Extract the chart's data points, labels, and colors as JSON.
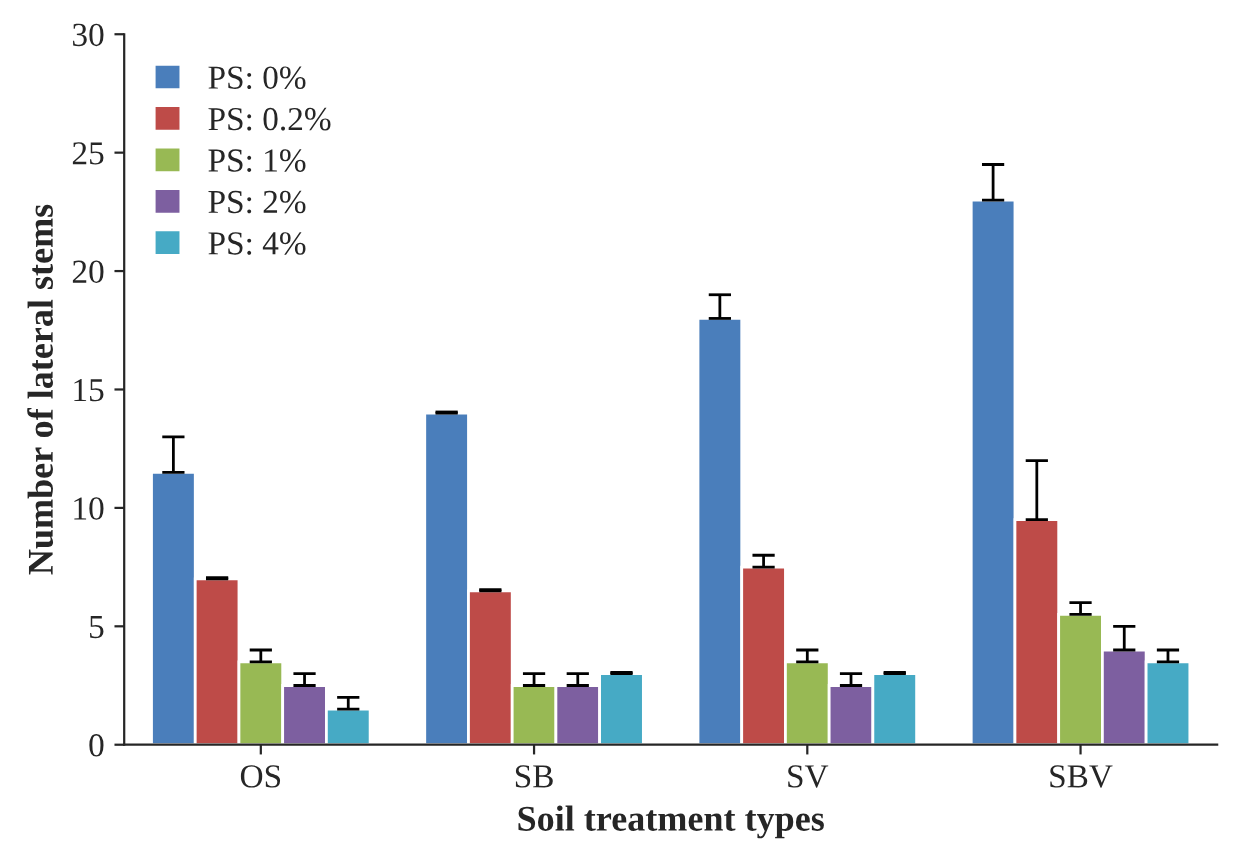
{
  "chart_data": {
    "type": "bar",
    "xlabel": "Soil treatment types",
    "ylabel": "Number of lateral stems",
    "categories": [
      "OS",
      "SB",
      "SV",
      "SBV"
    ],
    "series": [
      {
        "name": "PS: 0%",
        "color": "#4a7ebb",
        "values": [
          11.5,
          14,
          18,
          23
        ],
        "errors": [
          [
            11.5,
            13
          ],
          [
            14,
            14.05
          ],
          [
            18,
            19
          ],
          [
            23,
            24.5
          ]
        ]
      },
      {
        "name": "PS: 0.2%",
        "color": "#be4b48",
        "values": [
          7,
          6.5,
          7.5,
          9.5
        ],
        "errors": [
          [
            7,
            7.05
          ],
          [
            6.5,
            6.55
          ],
          [
            7.5,
            8
          ],
          [
            9.5,
            12
          ]
        ]
      },
      {
        "name": "PS: 1%",
        "color": "#98b954",
        "values": [
          3.5,
          2.5,
          3.5,
          5.5
        ],
        "errors": [
          [
            3.5,
            4
          ],
          [
            2.5,
            3
          ],
          [
            3.5,
            4
          ],
          [
            5.5,
            6
          ]
        ]
      },
      {
        "name": "PS: 2%",
        "color": "#7d5fa0",
        "values": [
          2.5,
          2.5,
          2.5,
          4
        ],
        "errors": [
          [
            2.5,
            3
          ],
          [
            2.5,
            3
          ],
          [
            2.5,
            3
          ],
          [
            4,
            5
          ]
        ]
      },
      {
        "name": "PS: 4%",
        "color": "#46aac5",
        "values": [
          1.5,
          3,
          3,
          3.5
        ],
        "errors": [
          [
            1.5,
            2
          ],
          [
            3,
            3.05
          ],
          [
            3,
            3.05
          ],
          [
            3.5,
            4
          ]
        ]
      }
    ],
    "ylim": [
      0,
      30
    ],
    "yticks": [
      0,
      5,
      10,
      15,
      20,
      25,
      30
    ],
    "grid": false,
    "legend": "top left"
  }
}
